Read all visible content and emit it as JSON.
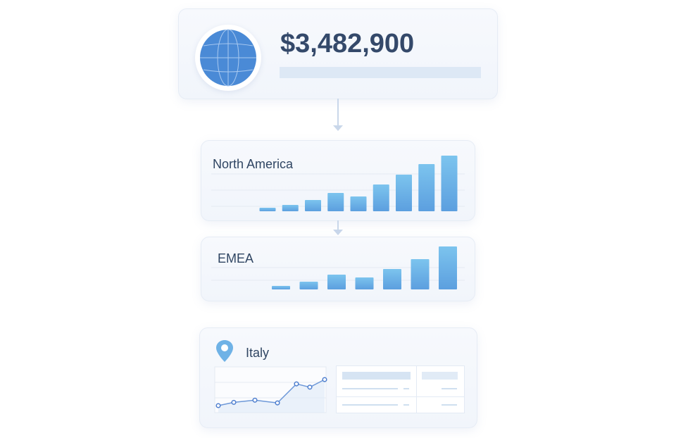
{
  "total": {
    "amount": "$3,482,900",
    "icon": "globe-icon"
  },
  "regions": [
    {
      "title": "North America",
      "chart_type": "bar",
      "values": [
        5,
        9,
        16,
        26,
        21,
        38,
        52,
        67,
        79
      ]
    },
    {
      "title": "EMEA",
      "chart_type": "bar",
      "values": [
        5,
        11,
        21,
        17,
        29,
        43,
        61
      ]
    }
  ],
  "country": {
    "title": "Italy",
    "icon": "map-pin-icon",
    "chart_type": "line",
    "values": [
      1,
      1.6,
      2,
      1.5,
      5,
      4.4,
      5.8
    ]
  },
  "colors": {
    "bar": "#6aaee6",
    "text": "#2f4562",
    "globe": "#4a8ad6",
    "line": "#4f7fcf"
  }
}
